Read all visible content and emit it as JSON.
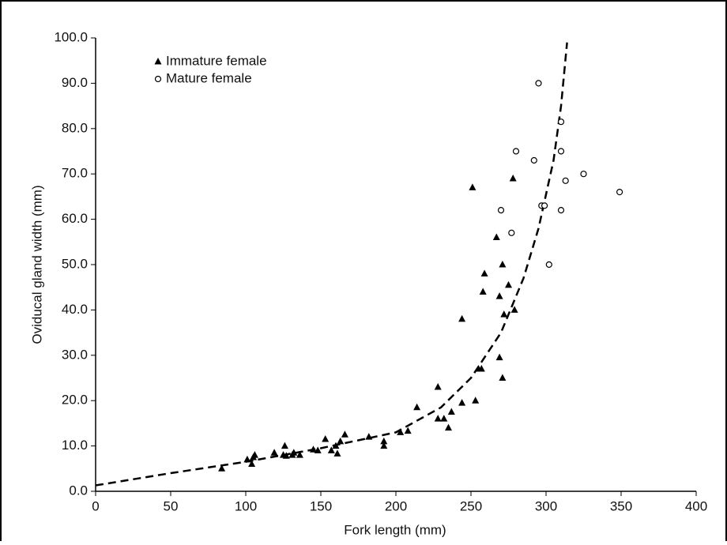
{
  "chart_data": {
    "type": "scatter",
    "xlabel": "Fork length (mm)",
    "ylabel": "Oviducal gland width (mm)",
    "xlim": [
      0,
      400
    ],
    "xticks": [
      0,
      50,
      100,
      150,
      200,
      250,
      300,
      350,
      400
    ],
    "ylim": [
      0,
      100
    ],
    "yticks": [
      {
        "value": 0,
        "label": "0.0"
      },
      {
        "value": 10,
        "label": "10.0"
      },
      {
        "value": 20,
        "label": "20.0"
      },
      {
        "value": 30,
        "label": "30.0"
      },
      {
        "value": 40,
        "label": "40.0"
      },
      {
        "value": 50,
        "label": "50.0"
      },
      {
        "value": 60,
        "label": "60.0"
      },
      {
        "value": 70,
        "label": "70.0"
      },
      {
        "value": 80,
        "label": "80.0"
      },
      {
        "value": 90,
        "label": "90.0"
      },
      {
        "value": 100,
        "label": "100.0"
      }
    ],
    "legend": "upper left",
    "series": [
      {
        "name": "Immature female",
        "marker": "triangle",
        "color": "#000000",
        "x": [
          84,
          101,
          104,
          105,
          106,
          119,
          125,
          126,
          127,
          131,
          132,
          136,
          145,
          148,
          153,
          157,
          161,
          160,
          163,
          166,
          182,
          192,
          192,
          203,
          208,
          214,
          228,
          228,
          232,
          235,
          237,
          244,
          244,
          251,
          253,
          255,
          257,
          258,
          259,
          267,
          269,
          269,
          271,
          271,
          272,
          275,
          278,
          279
        ],
        "y": [
          5,
          7,
          6,
          7.5,
          8,
          8.5,
          8,
          10,
          7.8,
          8,
          8.5,
          8,
          9.2,
          9,
          11.5,
          9,
          8.3,
          10,
          11,
          12.5,
          12,
          11,
          10,
          13,
          13.3,
          18.5,
          23,
          16,
          16,
          14,
          17.5,
          19.5,
          38,
          67,
          20,
          27,
          27,
          44,
          48,
          56,
          43,
          29.5,
          50,
          25,
          39,
          45.5,
          69,
          40
        ]
      },
      {
        "name": "Mature female",
        "marker": "circle",
        "color": "#000000",
        "x": [
          295,
          310,
          280,
          310,
          292,
          325,
          313,
          270,
          297,
          299,
          310,
          277,
          302,
          349
        ],
        "y": [
          90,
          81.5,
          75,
          75,
          73,
          70,
          68.5,
          62,
          63,
          63,
          62,
          57,
          50,
          66
        ]
      }
    ],
    "fit": {
      "style": "dashed",
      "color": "#000000",
      "x": [
        0,
        50,
        100,
        150,
        200,
        230,
        250,
        270,
        285,
        295,
        305,
        310,
        314
      ],
      "y": [
        1.3,
        4,
        6.5,
        9.5,
        13,
        18.5,
        25,
        35,
        47,
        58,
        73,
        85,
        99
      ]
    }
  }
}
